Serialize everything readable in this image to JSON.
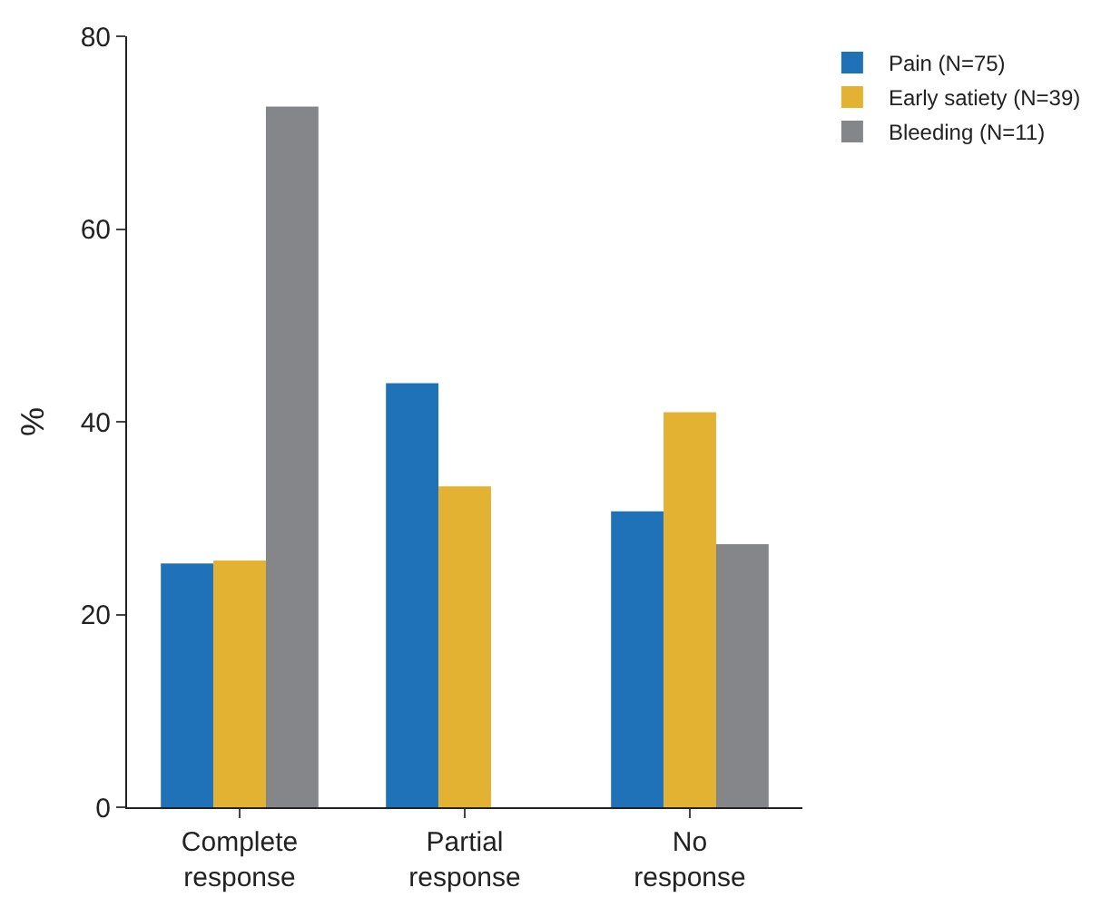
{
  "chart_data": {
    "type": "bar",
    "ylabel": "%",
    "categories": [
      "Complete response",
      "Partial response",
      "No response"
    ],
    "series": [
      {
        "name": "Pain (N=75)",
        "color": "#1f72b8",
        "values": [
          25.3,
          44.0,
          30.7
        ]
      },
      {
        "name": "Early satiety (N=39)",
        "color": "#e3b232",
        "values": [
          25.6,
          33.3,
          41.0
        ]
      },
      {
        "name": "Bleeding (N=11)",
        "color": "#858689",
        "values": [
          72.7,
          0,
          27.3
        ]
      }
    ],
    "ylim": [
      0,
      80
    ],
    "yticks": [
      0,
      20,
      40,
      60,
      80
    ],
    "legend": "top right"
  }
}
